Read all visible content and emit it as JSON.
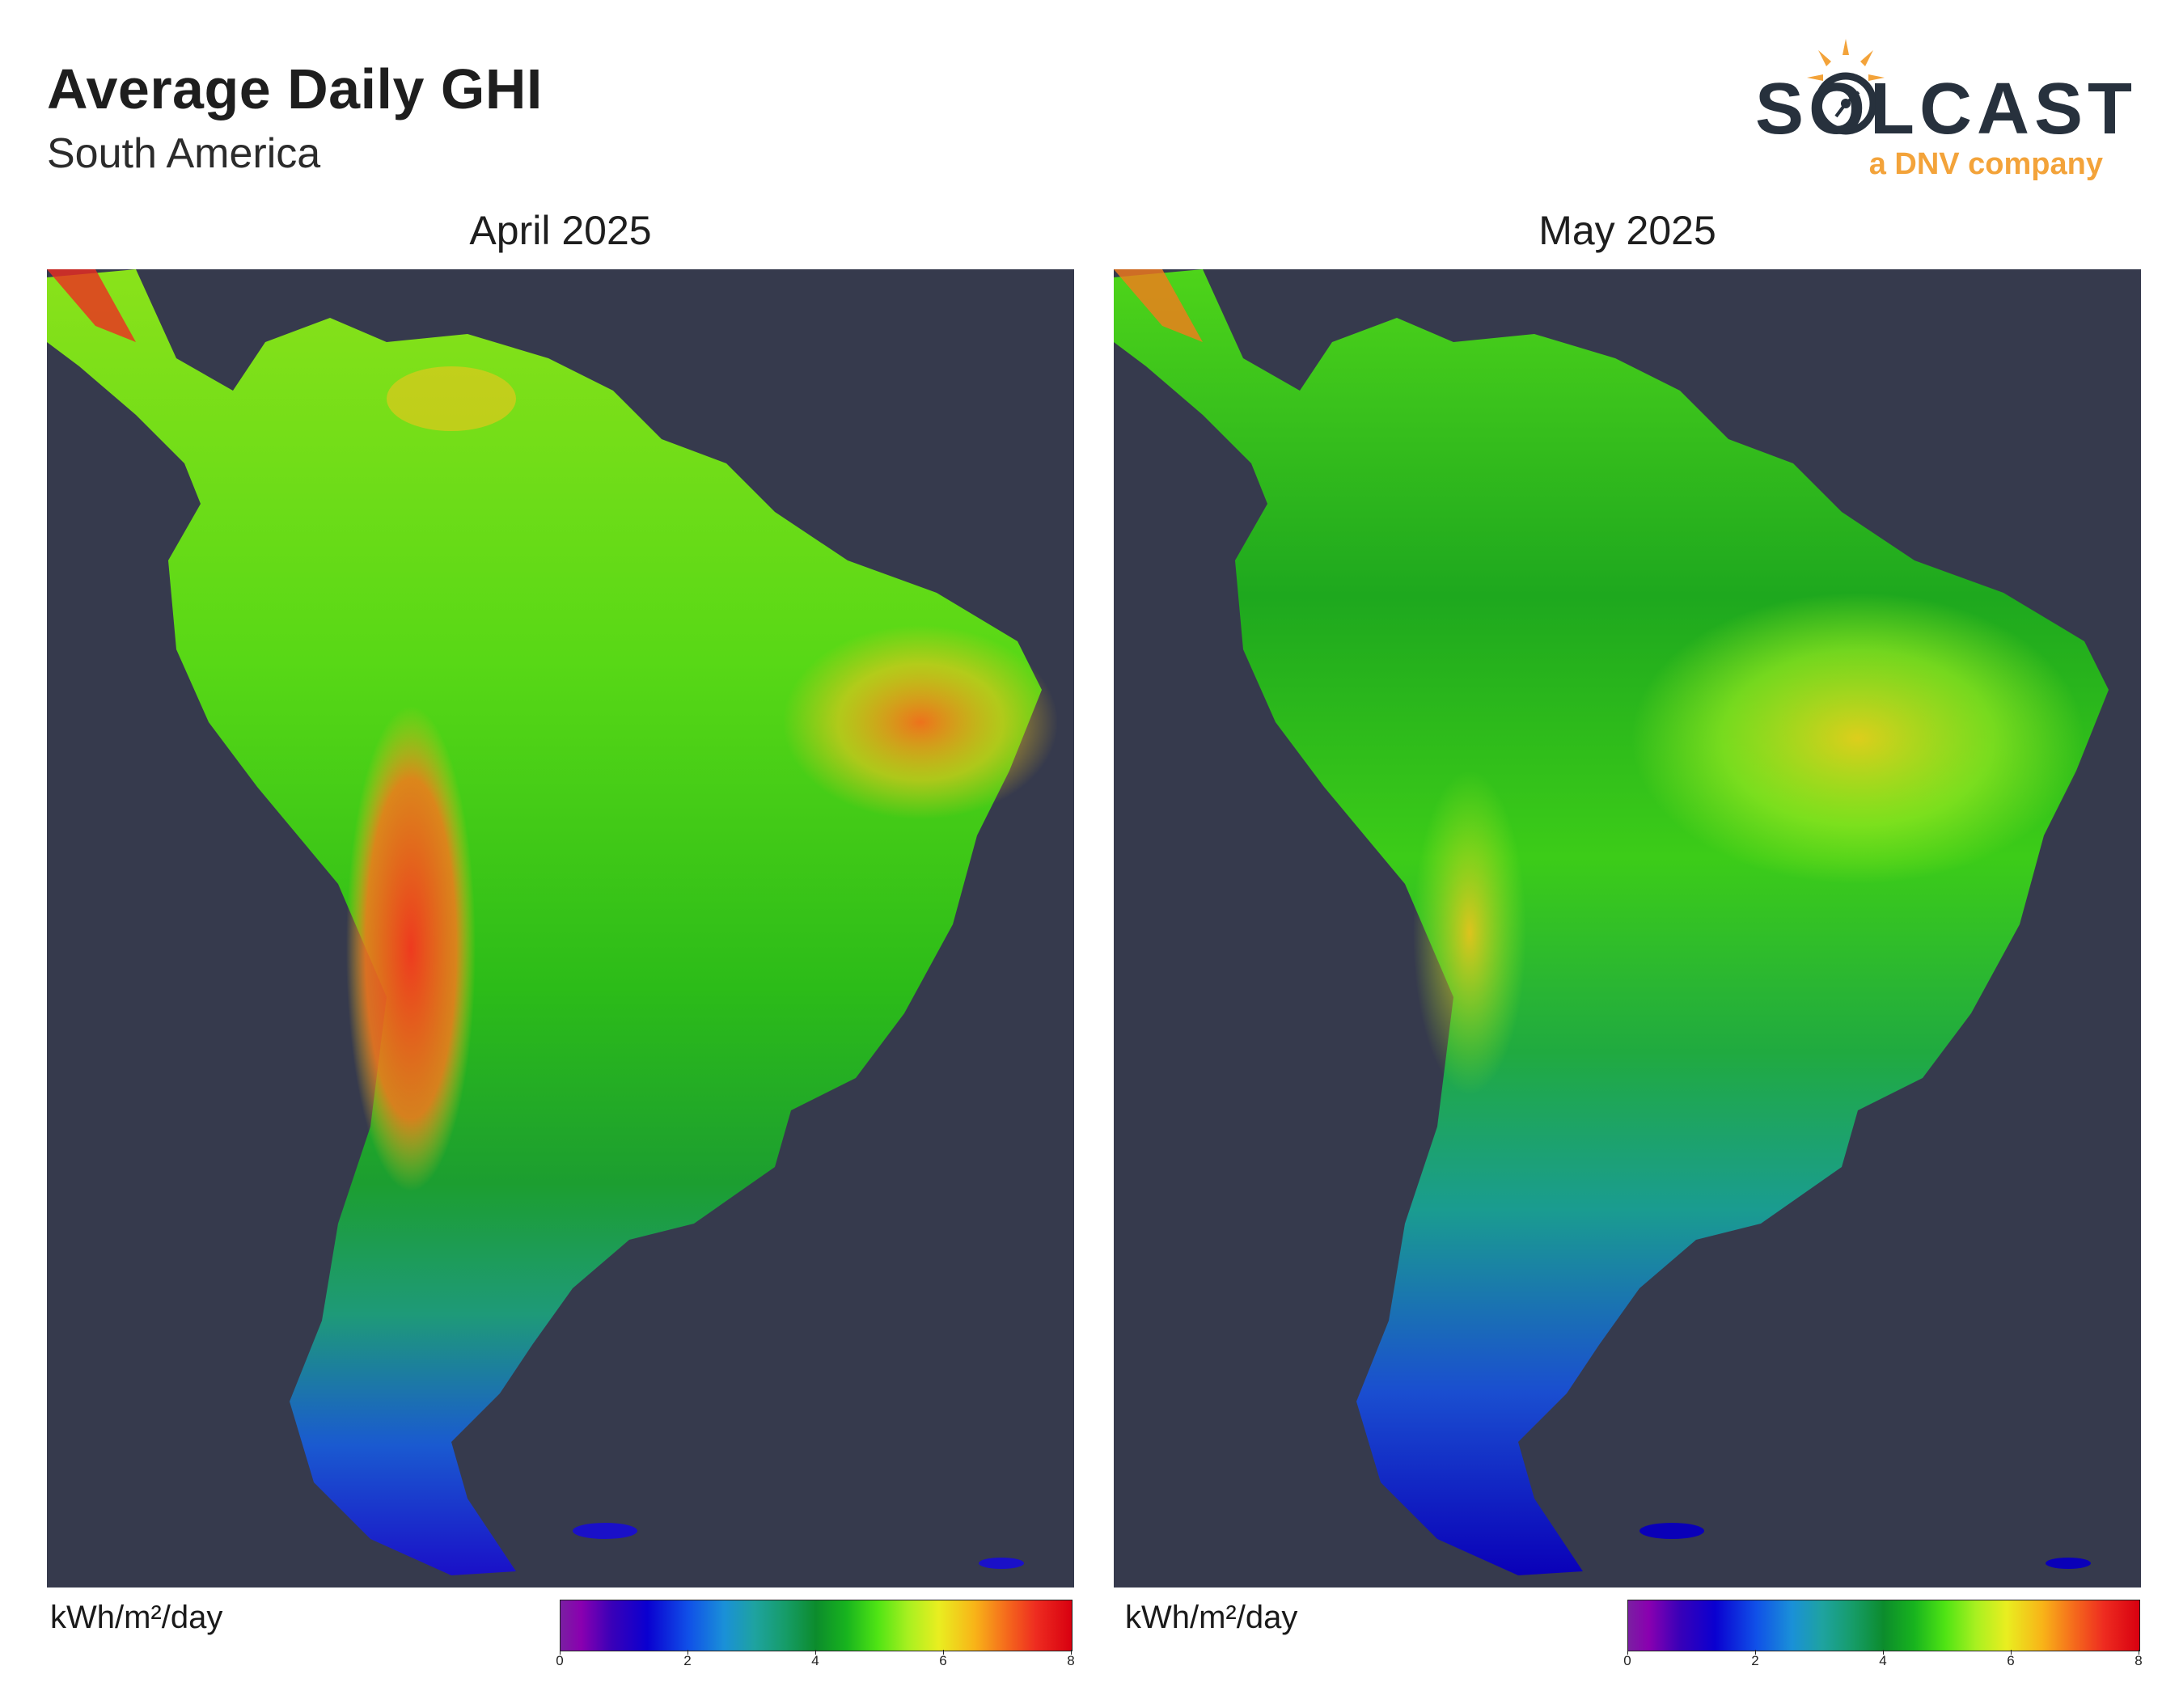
{
  "header": {
    "title": "Average Daily GHI",
    "subtitle": "South America"
  },
  "logo": {
    "wordmark": "SOLCAST",
    "tagline": "a DNV company",
    "icon": "sun-circuit-logo-icon",
    "colors": {
      "wordmark": "#27313d",
      "tagline": "#f3a33a",
      "sun": "#f3a33a"
    }
  },
  "panels": [
    {
      "title": "April 2025",
      "colorbar_label": "kWh/m²/day",
      "colorbar_ticks": [
        "0",
        "2",
        "4",
        "6",
        "8"
      ]
    },
    {
      "title": "May 2025",
      "colorbar_label": "kWh/m²/day",
      "colorbar_ticks": [
        "0",
        "2",
        "4",
        "6",
        "8"
      ]
    }
  ],
  "chart_data": {
    "type": "heatmap",
    "colorbar_range": [
      0,
      8
    ],
    "colors": {
      "ocean": "#363a4d",
      "scale": [
        "#8a00b0",
        "#0a00d0",
        "#1a90d8",
        "#169c68",
        "#18b41e",
        "#a8f020",
        "#f8b418",
        "#ee2c20"
      ]
    }
  }
}
